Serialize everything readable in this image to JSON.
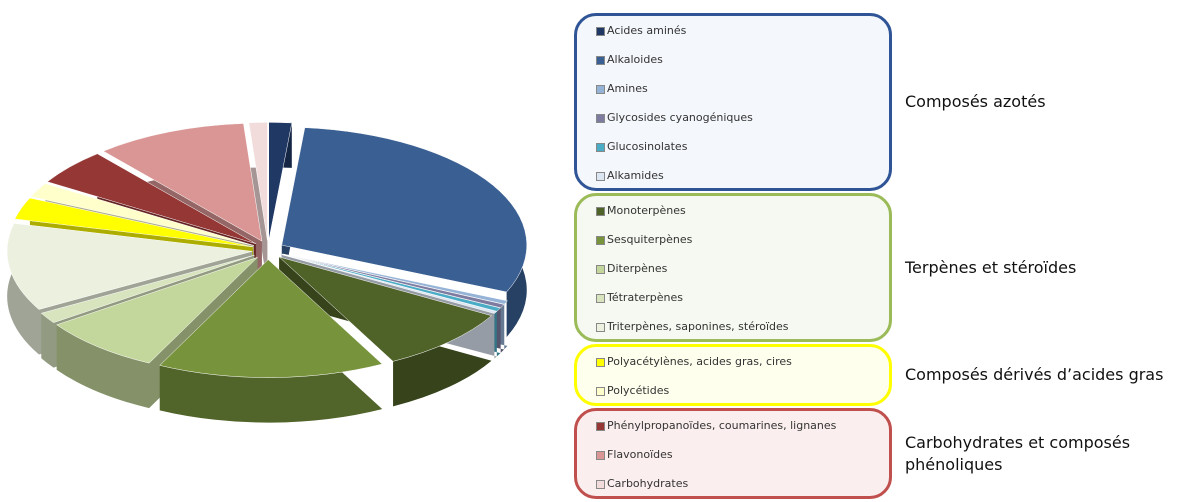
{
  "chart_data": {
    "type": "pie",
    "groups": [
      {
        "name": "Composés azotés",
        "color": "#2f5597",
        "background": "#f4f7fc",
        "categories": [
          "Acides aminés",
          "Alkaloides",
          "Amines",
          "Glycosides cyanogéniques",
          "Glucosinolates",
          "Alkamides"
        ],
        "values": [
          1.5,
          30,
          0.5,
          0.5,
          0.5,
          0.3
        ],
        "colors": [
          "#1f3864",
          "#3a5f93",
          "#95b3d7",
          "#7d7ba0",
          "#4bacc6",
          "#dce6f2"
        ]
      },
      {
        "name": "Terpènes et stéroïdes",
        "color": "#9bbb59",
        "background": "#f6f9f1",
        "categories": [
          "Monoterpènes",
          "Sesquiterpènes",
          "Diterpènes",
          "Tétraterpènes",
          "Triterpènes, saponines, stéroïdes"
        ],
        "values": [
          9,
          15,
          8,
          1.5,
          12
        ],
        "colors": [
          "#4f6228",
          "#77933c",
          "#c3d69b",
          "#d7e4bd",
          "#ebf1de"
        ]
      },
      {
        "name": "Composés dérivés d’acides gras",
        "color": "#ffff00",
        "background": "#ffffee",
        "categories": [
          "Polyacétylènes, acides gras, cires",
          "Polycétides"
        ],
        "values": [
          3,
          2
        ],
        "colors": [
          "#ffff00",
          "#ffffcc"
        ]
      },
      {
        "name": "Carbohydrates et composés phénoliques",
        "color": "#c0504d",
        "background": "#fbeeee",
        "categories": [
          "Phénylpropanoïdes, coumarines, lignanes",
          "Flavonoïdes",
          "Carbohydrates"
        ],
        "values": [
          5,
          10,
          1.2
        ],
        "colors": [
          "#953735",
          "#d99694",
          "#f2dcdb"
        ]
      }
    ]
  }
}
